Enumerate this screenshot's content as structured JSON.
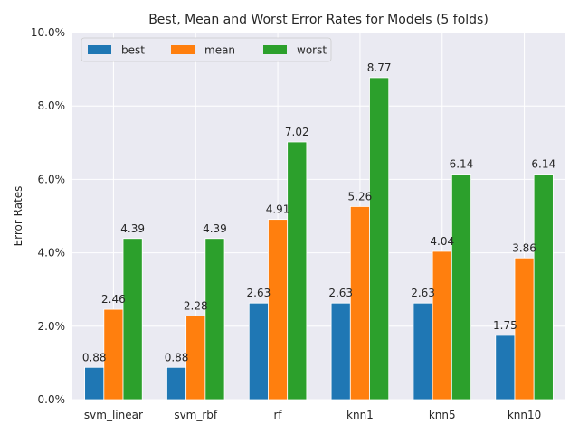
{
  "chart_data": {
    "type": "bar",
    "title": "Best, Mean and Worst Error Rates for Models (5 folds)",
    "xlabel": "",
    "ylabel": "Error Rates",
    "categories": [
      "svm_linear",
      "svm_rbf",
      "rf",
      "knn1",
      "knn5",
      "knn10"
    ],
    "series": [
      {
        "name": "best",
        "color": "#1f77b4",
        "values": [
          0.88,
          0.88,
          2.63,
          2.63,
          2.63,
          1.75
        ]
      },
      {
        "name": "mean",
        "color": "#ff7f0e",
        "values": [
          2.46,
          2.28,
          4.91,
          5.26,
          4.04,
          3.86
        ]
      },
      {
        "name": "worst",
        "color": "#2ca02c",
        "values": [
          4.39,
          4.39,
          7.02,
          8.77,
          6.14,
          6.14
        ]
      }
    ],
    "data_labels": [
      [
        "0.88",
        "0.88",
        "2.63",
        "2.63",
        "2.63",
        "1.75"
      ],
      [
        "2.46",
        "2.28",
        "4.91",
        "5.26",
        "4.04",
        "3.86"
      ],
      [
        "4.39",
        "4.39",
        "7.02",
        "8.77",
        "6.14",
        "6.14"
      ]
    ],
    "ylim": [
      0,
      10
    ],
    "yticks": [
      0,
      2,
      4,
      6,
      8,
      10
    ],
    "ytick_labels": [
      "0.0%",
      "2.0%",
      "4.0%",
      "6.0%",
      "8.0%",
      "10.0%"
    ],
    "grid": true,
    "background": "#eaeaf2",
    "legend_position": "upper-left"
  }
}
